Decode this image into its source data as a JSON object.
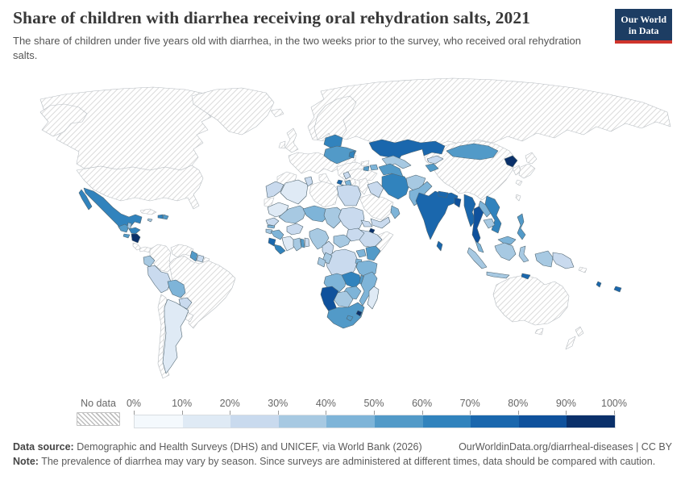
{
  "header": {
    "title": "Share of children with diarrhea receiving oral rehydration salts, 2021",
    "subtitle": "The share of children under five years old with diarrhea, in the two weeks prior to the survey, who received oral rehydration salts.",
    "logo": {
      "line1": "Our World",
      "line2": "in Data",
      "bg_color": "#1d3d63",
      "bar_color": "#cf342c"
    }
  },
  "legend": {
    "no_data_label": "No data",
    "tick_labels": [
      "0%",
      "10%",
      "20%",
      "30%",
      "40%",
      "50%",
      "60%",
      "70%",
      "80%",
      "90%",
      "100%"
    ],
    "colors": [
      "#f4f9fd",
      "#dfeaf5",
      "#c9daee",
      "#a7c9e2",
      "#7eb4d8",
      "#529ac8",
      "#3183bd",
      "#1a67ad",
      "#0f519c",
      "#0a306a"
    ],
    "country_stroke": "#4e6470",
    "no_data_stroke": "#b6bcc1"
  },
  "footer": {
    "source_label": "Data source:",
    "source_text": " Demographic and Health Surveys (DHS) and UNICEF, via World Bank (2026)",
    "link_text": "OurWorldinData.org/diarrheal-diseases | CC BY",
    "note_label": "Note:",
    "note_text": " The prevalence of diarrhea may vary by season. Since surveys are administered at different times, data should be compared with caution."
  },
  "chart_data": {
    "type": "choropleth",
    "title": "Share of children with diarrhea receiving oral rehydration salts, 2021",
    "unit": "%",
    "legend_range": [
      0,
      100
    ],
    "bucket_size": 10,
    "countries": [
      {
        "id": "canada",
        "name": "Canada",
        "bucket": null,
        "range": "No data"
      },
      {
        "id": "usa",
        "name": "United States",
        "bucket": null,
        "range": "No data"
      },
      {
        "id": "greenland",
        "name": "Greenland",
        "bucket": null,
        "range": "No data"
      },
      {
        "id": "mexico",
        "name": "Mexico",
        "bucket": 6,
        "range": "60-70%"
      },
      {
        "id": "guatemala",
        "name": "Guatemala",
        "bucket": 5,
        "range": "50-60%"
      },
      {
        "id": "belize",
        "name": "Belize",
        "bucket": 3,
        "range": "30-40%"
      },
      {
        "id": "honduras",
        "name": "Honduras",
        "bucket": 6,
        "range": "60-70%"
      },
      {
        "id": "el_salvador",
        "name": "El Salvador",
        "bucket": 5,
        "range": "50-60%"
      },
      {
        "id": "nicaragua",
        "name": "Nicaragua",
        "bucket": 9,
        "range": "90-100%"
      },
      {
        "id": "costa_rica",
        "name": "Costa Rica",
        "bucket": null,
        "range": "No data"
      },
      {
        "id": "panama",
        "name": "Panama",
        "bucket": null,
        "range": "No data"
      },
      {
        "id": "cuba",
        "name": "Cuba",
        "bucket": null,
        "range": "No data"
      },
      {
        "id": "jamaica",
        "name": "Jamaica",
        "bucket": 3,
        "range": "30-40%"
      },
      {
        "id": "haiti",
        "name": "Haiti",
        "bucket": 6,
        "range": "60-70%"
      },
      {
        "id": "dominican_republic",
        "name": "Dominican Republic",
        "bucket": 5,
        "range": "50-60%"
      },
      {
        "id": "colombia",
        "name": "Colombia",
        "bucket": null,
        "range": "No data"
      },
      {
        "id": "venezuela",
        "name": "Venezuela",
        "bucket": null,
        "range": "No data"
      },
      {
        "id": "guyana",
        "name": "Guyana",
        "bucket": 5,
        "range": "50-60%"
      },
      {
        "id": "suriname",
        "name": "Suriname",
        "bucket": 2,
        "range": "20-30%"
      },
      {
        "id": "french_guiana",
        "name": "French Guiana",
        "bucket": null,
        "range": "No data"
      },
      {
        "id": "ecuador",
        "name": "Ecuador",
        "bucket": 3,
        "range": "30-40%"
      },
      {
        "id": "peru",
        "name": "Peru",
        "bucket": 2,
        "range": "20-30%"
      },
      {
        "id": "brazil",
        "name": "Brazil",
        "bucket": null,
        "range": "No data"
      },
      {
        "id": "bolivia",
        "name": "Bolivia",
        "bucket": 4,
        "range": "40-50%"
      },
      {
        "id": "paraguay",
        "name": "Paraguay",
        "bucket": 2,
        "range": "20-30%"
      },
      {
        "id": "chile",
        "name": "Chile",
        "bucket": null,
        "range": "No data"
      },
      {
        "id": "argentina",
        "name": "Argentina",
        "bucket": 1,
        "range": "10-20%"
      },
      {
        "id": "uruguay",
        "name": "Uruguay",
        "bucket": null,
        "range": "No data"
      },
      {
        "id": "iceland",
        "name": "Iceland",
        "bucket": null,
        "range": "No data"
      },
      {
        "id": "united_kingdom",
        "name": "United Kingdom",
        "bucket": null,
        "range": "No data"
      },
      {
        "id": "ireland",
        "name": "Ireland",
        "bucket": null,
        "range": "No data"
      },
      {
        "id": "scandinavia",
        "name": "Norway, Sweden & Finland",
        "bucket": null,
        "range": "No data"
      },
      {
        "id": "europe_mainland",
        "name": "Western & Central Europe",
        "bucket": null,
        "range": "No data"
      },
      {
        "id": "iberia",
        "name": "Spain & Portugal",
        "bucket": null,
        "range": "No data"
      },
      {
        "id": "italy",
        "name": "Italy",
        "bucket": null,
        "range": "No data"
      },
      {
        "id": "balkans",
        "name": "Southeast Europe",
        "bucket": null,
        "range": "No data"
      },
      {
        "id": "serbia",
        "name": "Serbia",
        "bucket": 2,
        "range": "20-30%"
      },
      {
        "id": "montenegro",
        "name": "Montenegro",
        "bucket": 7,
        "range": "70-80%"
      },
      {
        "id": "albania",
        "name": "Albania",
        "bucket": 7,
        "range": "70-80%"
      },
      {
        "id": "north_macedonia",
        "name": "North Macedonia",
        "bucket": 4,
        "range": "40-50%"
      },
      {
        "id": "belarus",
        "name": "Belarus",
        "bucket": 6,
        "range": "60-70%"
      },
      {
        "id": "ukraine",
        "name": "Ukraine",
        "bucket": 5,
        "range": "50-60%"
      },
      {
        "id": "moldova",
        "name": "Moldova",
        "bucket": 6,
        "range": "60-70%"
      },
      {
        "id": "russia",
        "name": "Russia",
        "bucket": null,
        "range": "No data"
      },
      {
        "id": "morocco",
        "name": "Morocco",
        "bucket": 2,
        "range": "20-30%"
      },
      {
        "id": "western_sahara",
        "name": "Western Sahara",
        "bucket": null,
        "range": "No data"
      },
      {
        "id": "algeria",
        "name": "Algeria",
        "bucket": 1,
        "range": "10-20%"
      },
      {
        "id": "tunisia",
        "name": "Tunisia",
        "bucket": 2,
        "range": "20-30%"
      },
      {
        "id": "libya",
        "name": "Libya",
        "bucket": null,
        "range": "No data"
      },
      {
        "id": "egypt",
        "name": "Egypt",
        "bucket": 2,
        "range": "20-30%"
      },
      {
        "id": "mauritania",
        "name": "Mauritania",
        "bucket": 1,
        "range": "10-20%"
      },
      {
        "id": "mali",
        "name": "Mali",
        "bucket": 3,
        "range": "30-40%"
      },
      {
        "id": "niger",
        "name": "Niger",
        "bucket": 4,
        "range": "40-50%"
      },
      {
        "id": "chad",
        "name": "Chad",
        "bucket": 3,
        "range": "30-40%"
      },
      {
        "id": "sudan",
        "name": "Sudan",
        "bucket": 2,
        "range": "20-30%"
      },
      {
        "id": "eritrea",
        "name": "Eritrea",
        "bucket": 2,
        "range": "20-30%"
      },
      {
        "id": "djibouti",
        "name": "Djibouti",
        "bucket": 9,
        "range": "90-100%"
      },
      {
        "id": "ethiopia",
        "name": "Ethiopia",
        "bucket": 2,
        "range": "20-30%"
      },
      {
        "id": "somalia",
        "name": "Somalia",
        "bucket": null,
        "range": "No data"
      },
      {
        "id": "senegal",
        "name": "Senegal",
        "bucket": 2,
        "range": "20-30%"
      },
      {
        "id": "gambia",
        "name": "Gambia",
        "bucket": 4,
        "range": "40-50%"
      },
      {
        "id": "guinea_bissau",
        "name": "Guinea-Bissau",
        "bucket": 3,
        "range": "30-40%"
      },
      {
        "id": "guinea",
        "name": "Guinea",
        "bucket": 4,
        "range": "40-50%"
      },
      {
        "id": "sierra_leone",
        "name": "Sierra Leone",
        "bucket": 7,
        "range": "70-80%"
      },
      {
        "id": "liberia",
        "name": "Liberia",
        "bucket": 6,
        "range": "60-70%"
      },
      {
        "id": "cote_divoire",
        "name": "Cote d'Ivoire",
        "bucket": 1,
        "range": "10-20%"
      },
      {
        "id": "ghana",
        "name": "Ghana",
        "bucket": 3,
        "range": "30-40%"
      },
      {
        "id": "togo",
        "name": "Togo",
        "bucket": 5,
        "range": "50-60%"
      },
      {
        "id": "benin",
        "name": "Benin",
        "bucket": 2,
        "range": "20-30%"
      },
      {
        "id": "burkina_faso",
        "name": "Burkina Faso",
        "bucket": 2,
        "range": "20-30%"
      },
      {
        "id": "nigeria",
        "name": "Nigeria",
        "bucket": 3,
        "range": "30-40%"
      },
      {
        "id": "cameroon",
        "name": "Cameroon",
        "bucket": 2,
        "range": "20-30%"
      },
      {
        "id": "car",
        "name": "Central African Republic",
        "bucket": 3,
        "range": "30-40%"
      },
      {
        "id": "south_sudan",
        "name": "South Sudan",
        "bucket": 2,
        "range": "20-30%"
      },
      {
        "id": "drc",
        "name": "Democratic Republic of Congo",
        "bucket": 2,
        "range": "20-30%"
      },
      {
        "id": "congo",
        "name": "Congo",
        "bucket": 3,
        "range": "30-40%"
      },
      {
        "id": "gabon",
        "name": "Gabon",
        "bucket": 3,
        "range": "30-40%"
      },
      {
        "id": "uganda",
        "name": "Uganda",
        "bucket": 4,
        "range": "40-50%"
      },
      {
        "id": "kenya",
        "name": "Kenya",
        "bucket": 5,
        "range": "50-60%"
      },
      {
        "id": "rwanda",
        "name": "Rwanda & Burundi",
        "bucket": 4,
        "range": "40-50%"
      },
      {
        "id": "tanzania",
        "name": "Tanzania",
        "bucket": 4,
        "range": "40-50%"
      },
      {
        "id": "angola",
        "name": "Angola",
        "bucket": 4,
        "range": "40-50%"
      },
      {
        "id": "zambia",
        "name": "Zambia",
        "bucket": 6,
        "range": "60-70%"
      },
      {
        "id": "malawi",
        "name": "Malawi",
        "bucket": 5,
        "range": "50-60%"
      },
      {
        "id": "mozambique",
        "name": "Mozambique",
        "bucket": 4,
        "range": "40-50%"
      },
      {
        "id": "zimbabwe",
        "name": "Zimbabwe",
        "bucket": 4,
        "range": "40-50%"
      },
      {
        "id": "botswana",
        "name": "Botswana",
        "bucket": 3,
        "range": "30-40%"
      },
      {
        "id": "namibia",
        "name": "Namibia",
        "bucket": 8,
        "range": "80-90%"
      },
      {
        "id": "south_africa",
        "name": "South Africa",
        "bucket": 5,
        "range": "50-60%"
      },
      {
        "id": "lesotho",
        "name": "Lesotho",
        "bucket": 5,
        "range": "50-60%"
      },
      {
        "id": "eswatini",
        "name": "Eswatini",
        "bucket": 9,
        "range": "90-100%"
      },
      {
        "id": "madagascar",
        "name": "Madagascar",
        "bucket": 1,
        "range": "10-20%"
      },
      {
        "id": "turkey",
        "name": "Turkey",
        "bucket": null,
        "range": "No data"
      },
      {
        "id": "levant",
        "name": "Syria, Lebanon, Israel & Jordan",
        "bucket": null,
        "range": "No data"
      },
      {
        "id": "georgia",
        "name": "Georgia",
        "bucket": null,
        "range": "No data"
      },
      {
        "id": "armenia",
        "name": "Armenia",
        "bucket": 5,
        "range": "50-60%"
      },
      {
        "id": "azerbaijan",
        "name": "Azerbaijan",
        "bucket": 4,
        "range": "40-50%"
      },
      {
        "id": "iraq",
        "name": "Iraq",
        "bucket": 2,
        "range": "20-30%"
      },
      {
        "id": "saudi_arabia",
        "name": "Saudi Arabia",
        "bucket": null,
        "range": "No data"
      },
      {
        "id": "yemen",
        "name": "Yemen",
        "bucket": 2,
        "range": "20-30%"
      },
      {
        "id": "oman",
        "name": "Oman",
        "bucket": 4,
        "range": "40-50%"
      },
      {
        "id": "iran",
        "name": "Iran",
        "bucket": 6,
        "range": "60-70%"
      },
      {
        "id": "kazakhstan",
        "name": "Kazakhstan",
        "bucket": 7,
        "range": "70-80%"
      },
      {
        "id": "uzbekistan",
        "name": "Uzbekistan",
        "bucket": 3,
        "range": "30-40%"
      },
      {
        "id": "turkmenistan",
        "name": "Turkmenistan",
        "bucket": 5,
        "range": "50-60%"
      },
      {
        "id": "kyrgyzstan",
        "name": "Kyrgyzstan",
        "bucket": 2,
        "range": "20-30%"
      },
      {
        "id": "tajikistan",
        "name": "Tajikistan",
        "bucket": 5,
        "range": "50-60%"
      },
      {
        "id": "afghanistan",
        "name": "Afghanistan",
        "bucket": 3,
        "range": "30-40%"
      },
      {
        "id": "pakistan",
        "name": "Pakistan",
        "bucket": 4,
        "range": "40-50%"
      },
      {
        "id": "india",
        "name": "India",
        "bucket": 7,
        "range": "70-80%"
      },
      {
        "id": "nepal",
        "name": "Nepal",
        "bucket": 7,
        "range": "70-80%"
      },
      {
        "id": "bangladesh",
        "name": "Bangladesh",
        "bucket": 8,
        "range": "80-90%"
      },
      {
        "id": "sri_lanka",
        "name": "Sri Lanka",
        "bucket": 7,
        "range": "70-80%"
      },
      {
        "id": "myanmar",
        "name": "Myanmar",
        "bucket": 7,
        "range": "70-80%"
      },
      {
        "id": "thailand",
        "name": "Thailand",
        "bucket": 8,
        "range": "80-90%"
      },
      {
        "id": "laos",
        "name": "Laos",
        "bucket": 4,
        "range": "40-50%"
      },
      {
        "id": "cambodia",
        "name": "Cambodia",
        "bucket": 3,
        "range": "30-40%"
      },
      {
        "id": "vietnam",
        "name": "Vietnam",
        "bucket": 6,
        "range": "60-70%"
      },
      {
        "id": "malaysia",
        "name": "Malaysia",
        "bucket": 4,
        "range": "40-50%"
      },
      {
        "id": "indonesia",
        "name": "Indonesia",
        "bucket": 3,
        "range": "30-40%"
      },
      {
        "id": "philippines",
        "name": "Philippines",
        "bucket": 5,
        "range": "50-60%"
      },
      {
        "id": "timor_leste",
        "name": "Timor-Leste",
        "bucket": 7,
        "range": "70-80%"
      },
      {
        "id": "png",
        "name": "Papua New Guinea",
        "bucket": 2,
        "range": "20-30%"
      },
      {
        "id": "china",
        "name": "China",
        "bucket": null,
        "range": "No data"
      },
      {
        "id": "mongolia",
        "name": "Mongolia",
        "bucket": 5,
        "range": "50-60%"
      },
      {
        "id": "north_korea",
        "name": "North Korea",
        "bucket": 9,
        "range": "90-100%"
      },
      {
        "id": "south_korea",
        "name": "South Korea",
        "bucket": null,
        "range": "No data"
      },
      {
        "id": "japan",
        "name": "Japan",
        "bucket": null,
        "range": "No data"
      },
      {
        "id": "taiwan",
        "name": "Taiwan",
        "bucket": null,
        "range": "No data"
      },
      {
        "id": "australia",
        "name": "Australia",
        "bucket": null,
        "range": "No data"
      },
      {
        "id": "new_zealand",
        "name": "New Zealand",
        "bucket": null,
        "range": "No data"
      },
      {
        "id": "solomon_islands",
        "name": "Solomon Islands",
        "bucket": null,
        "range": "No data"
      },
      {
        "id": "vanuatu",
        "name": "Vanuatu",
        "bucket": 7,
        "range": "70-80%"
      },
      {
        "id": "fiji",
        "name": "Fiji",
        "bucket": 7,
        "range": "70-80%"
      }
    ]
  }
}
